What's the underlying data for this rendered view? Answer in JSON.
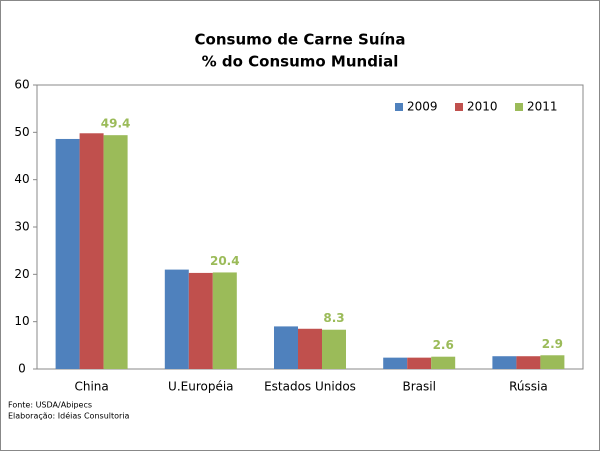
{
  "chart_data": {
    "type": "bar",
    "title": "Consumo de Carne Suína",
    "subtitle": "% do Consumo Mundial",
    "categories": [
      "China",
      "U.Européia",
      "Estados Unidos",
      "Brasil",
      "Rússia"
    ],
    "series": [
      {
        "name": "2009",
        "color": "#4f81bd",
        "values": [
          48.6,
          21.0,
          9.0,
          2.4,
          2.7
        ]
      },
      {
        "name": "2010",
        "color": "#c0504d",
        "values": [
          49.8,
          20.3,
          8.5,
          2.4,
          2.7
        ]
      },
      {
        "name": "2011",
        "color": "#9bbb59",
        "values": [
          49.4,
          20.4,
          8.3,
          2.6,
          2.9
        ],
        "data_labels": true
      }
    ],
    "ylim": [
      0,
      60
    ],
    "yticks": [
      0,
      10,
      20,
      30,
      40,
      50,
      60
    ],
    "legend": "top-right",
    "notes": [
      "Fonte: USDA/Abipecs",
      "Elaboração: Idéias Consultoria"
    ]
  }
}
